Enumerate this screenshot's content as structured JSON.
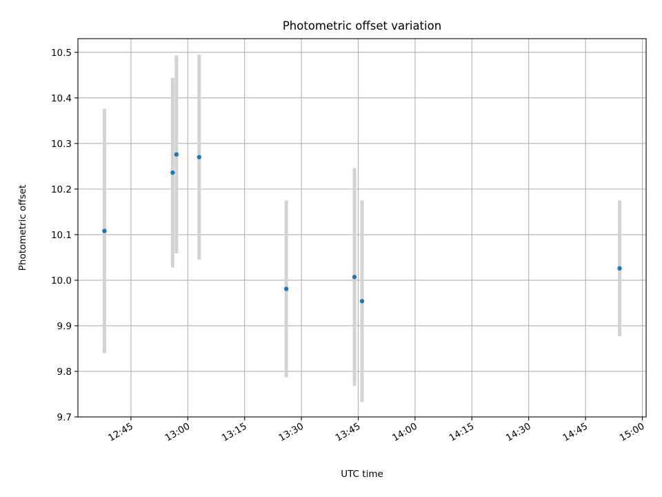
{
  "chart_data": {
    "type": "scatter",
    "title": "Photometric offset variation",
    "xlabel": "UTC time",
    "ylabel": "Photometric offset",
    "x_ticks": [
      "12:45",
      "13:00",
      "13:15",
      "13:30",
      "13:45",
      "14:00",
      "14:15",
      "14:30",
      "14:45",
      "15:00"
    ],
    "y_ticks": [
      "9.7",
      "9.8",
      "9.9",
      "10.0",
      "10.1",
      "10.2",
      "10.3",
      "10.4",
      "10.5"
    ],
    "xlim": [
      "12:31",
      "15:01"
    ],
    "ylim": [
      9.7,
      10.53
    ],
    "grid": true,
    "series": [
      {
        "color": "#1f77b4",
        "errorbar_color": "#d3d3d3",
        "points": [
          {
            "x": "12:38",
            "y": 10.108,
            "err": 0.268
          },
          {
            "x": "12:56",
            "y": 10.236,
            "err": 0.208
          },
          {
            "x": "12:57",
            "y": 10.276,
            "err": 0.217
          },
          {
            "x": "13:03",
            "y": 10.27,
            "err": 0.225
          },
          {
            "x": "13:26",
            "y": 9.981,
            "err": 0.194
          },
          {
            "x": "13:44",
            "y": 10.007,
            "err": 0.239
          },
          {
            "x": "13:46",
            "y": 9.954,
            "err": 0.221
          },
          {
            "x": "14:54",
            "y": 10.026,
            "err": 0.149
          }
        ]
      }
    ]
  }
}
